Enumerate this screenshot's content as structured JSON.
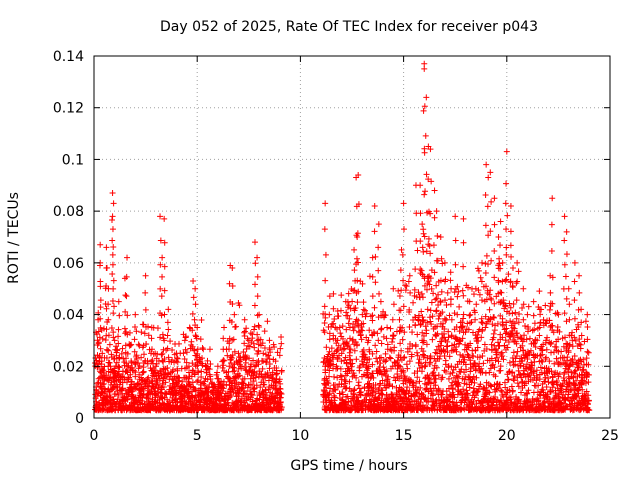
{
  "chart_data": {
    "type": "scatter",
    "title": "Day 052 of 2025, Rate Of TEC Index for receiver p043",
    "xlabel": "GPS time / hours",
    "ylabel": "ROTI / TECUs",
    "xlim": [
      0,
      25
    ],
    "ylim": [
      0,
      0.14
    ],
    "xticks": [
      0,
      5,
      10,
      15,
      20,
      25
    ],
    "xtick_labels": [
      "0",
      "5",
      "10",
      "15",
      "20",
      "25"
    ],
    "yticks": [
      0,
      0.02,
      0.04,
      0.06,
      0.08,
      0.1,
      0.12,
      0.14
    ],
    "ytick_labels": [
      "0",
      "0.02",
      "0.04",
      "0.06",
      "0.08",
      "0.1",
      "0.12",
      "0.14"
    ],
    "grid": true,
    "marker": "+",
    "marker_color": "#ff0000",
    "data_gap_hours": [
      9.1,
      11.1
    ],
    "series": [
      {
        "name": "ROTI",
        "x": [
          0.1,
          0.2,
          0.3,
          0.4,
          0.5,
          0.6,
          0.7,
          0.8,
          0.9,
          1.0,
          1.2,
          1.4,
          1.6,
          1.8,
          2.0,
          2.2,
          2.4,
          2.6,
          2.8,
          3.0,
          3.2,
          3.4,
          3.6,
          3.8,
          4.0,
          4.2,
          4.4,
          4.6,
          4.8,
          5.0,
          5.2,
          5.5,
          5.8,
          6.0,
          6.3,
          6.6,
          6.8,
          7.0,
          7.3,
          7.6,
          7.8,
          8.0,
          8.2,
          8.5,
          8.8,
          9.0,
          11.2,
          11.4,
          11.6,
          11.8,
          12.0,
          12.2,
          12.4,
          12.6,
          12.8,
          13.0,
          13.3,
          13.6,
          13.9,
          14.2,
          14.5,
          14.8,
          15.0,
          15.3,
          15.6,
          15.9,
          16.0,
          16.1,
          16.3,
          16.5,
          16.8,
          17.0,
          17.3,
          17.6,
          17.9,
          18.2,
          18.5,
          18.8,
          19.0,
          19.2,
          19.4,
          19.6,
          19.8,
          20.0,
          20.2,
          20.5,
          20.8,
          21.0,
          21.3,
          21.6,
          21.9,
          22.2,
          22.5,
          22.8,
          23.0,
          23.3,
          23.6,
          23.9,
          0.3,
          0.6,
          0.9,
          1.5,
          2.5,
          3.3,
          4.9,
          6.7,
          7.9,
          12.7,
          13.5,
          14.9,
          15.8,
          16.0,
          16.2,
          16.6,
          17.5,
          19.1,
          19.7,
          20.3,
          22.1,
          22.9,
          23.5,
          0.95,
          3.4,
          12.75,
          15.95,
          19.95,
          11.2,
          13.8
        ],
        "y": [
          0.012,
          0.038,
          0.06,
          0.025,
          0.015,
          0.066,
          0.05,
          0.02,
          0.087,
          0.03,
          0.045,
          0.018,
          0.062,
          0.022,
          0.04,
          0.015,
          0.028,
          0.012,
          0.035,
          0.02,
          0.078,
          0.03,
          0.042,
          0.015,
          0.025,
          0.012,
          0.03,
          0.02,
          0.053,
          0.035,
          0.018,
          0.01,
          0.012,
          0.02,
          0.035,
          0.059,
          0.04,
          0.025,
          0.038,
          0.02,
          0.068,
          0.04,
          0.025,
          0.03,
          0.022,
          0.015,
          0.02,
          0.04,
          0.048,
          0.03,
          0.025,
          0.045,
          0.035,
          0.065,
          0.094,
          0.04,
          0.03,
          0.082,
          0.045,
          0.035,
          0.05,
          0.038,
          0.083,
          0.055,
          0.09,
          0.075,
          0.137,
          0.124,
          0.104,
          0.088,
          0.07,
          0.06,
          0.05,
          0.04,
          0.077,
          0.045,
          0.05,
          0.06,
          0.098,
          0.095,
          0.085,
          0.07,
          0.06,
          0.103,
          0.082,
          0.06,
          0.05,
          0.04,
          0.045,
          0.042,
          0.03,
          0.085,
          0.04,
          0.078,
          0.05,
          0.06,
          0.042,
          0.04,
          0.067,
          0.058,
          0.078,
          0.054,
          0.055,
          0.062,
          0.05,
          0.058,
          0.062,
          0.093,
          0.062,
          0.065,
          0.09,
          0.135,
          0.105,
          0.08,
          0.078,
          0.093,
          0.076,
          0.058,
          0.055,
          0.072,
          0.055,
          0.083,
          0.077,
          0.07,
          0.073,
          0.083,
          0.083,
          0.075
        ]
      }
    ],
    "dense_envelope": {
      "description": "per-hour upper bound of the dense marker cloud",
      "hours": [
        0,
        1,
        2,
        3,
        4,
        5,
        6,
        7,
        8,
        9,
        11,
        12,
        13,
        14,
        15,
        16,
        17,
        18,
        19,
        20,
        21,
        22,
        23,
        24
      ],
      "upper": [
        0.035,
        0.03,
        0.028,
        0.03,
        0.025,
        0.035,
        0.015,
        0.035,
        0.03,
        0.025,
        0.035,
        0.04,
        0.045,
        0.035,
        0.04,
        0.055,
        0.05,
        0.045,
        0.05,
        0.055,
        0.04,
        0.04,
        0.035,
        0.03
      ],
      "lower": [
        0.003,
        0.003,
        0.003,
        0.003,
        0.003,
        0.003,
        0.003,
        0.003,
        0.003,
        0.003,
        0.003,
        0.003,
        0.003,
        0.003,
        0.003,
        0.003,
        0.003,
        0.003,
        0.003,
        0.003,
        0.003,
        0.003,
        0.003,
        0.003
      ]
    }
  }
}
